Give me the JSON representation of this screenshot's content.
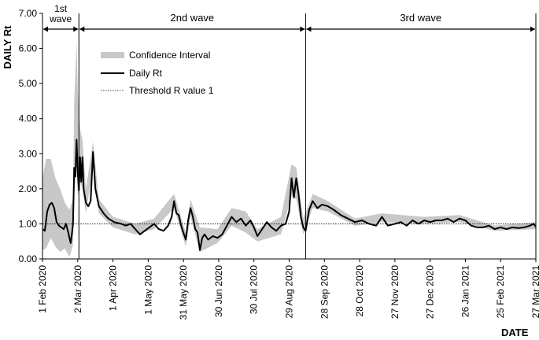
{
  "chart_data": {
    "type": "line",
    "ylabel": "DAILY Rt",
    "xlabel": "DATE",
    "ylim": [
      0,
      7
    ],
    "y_ticks": [
      "0.00",
      "1.00",
      "2.00",
      "3.00",
      "4.00",
      "5.00",
      "6.00",
      "7.00"
    ],
    "x_range": [
      "2020-02-01",
      "2021-03-27"
    ],
    "x_ticks": [
      {
        "date": "2020-02-01",
        "label": "1 Feb 2020"
      },
      {
        "date": "2020-03-02",
        "label": "2 Mar 2020"
      },
      {
        "date": "2020-04-01",
        "label": "1 Apr 2020"
      },
      {
        "date": "2020-05-01",
        "label": "1 May 2020"
      },
      {
        "date": "2020-05-31",
        "label": "31 May 2020"
      },
      {
        "date": "2020-06-30",
        "label": "30 Jun 2020"
      },
      {
        "date": "2020-07-30",
        "label": "30 Jul 2020"
      },
      {
        "date": "2020-08-29",
        "label": "29 Aug 2020"
      },
      {
        "date": "2020-09-28",
        "label": "28 Sep 2020"
      },
      {
        "date": "2020-10-28",
        "label": "28 Oct 2020"
      },
      {
        "date": "2020-11-27",
        "label": "27 Nov 2020"
      },
      {
        "date": "2020-12-27",
        "label": "27 Dec 2020"
      },
      {
        "date": "2021-01-26",
        "label": "26 Jan 2021"
      },
      {
        "date": "2021-02-25",
        "label": "25 Feb 2021"
      },
      {
        "date": "2021-03-27",
        "label": "27 Mar 2021"
      }
    ],
    "threshold": 1.0,
    "legend": {
      "position": "top-left",
      "entries": [
        {
          "name": "Confidence Interval",
          "style": "band",
          "color": "#c8c8c8"
        },
        {
          "name": "Daily Rt",
          "style": "line",
          "color": "#000000"
        },
        {
          "name": "Threshold R value 1",
          "style": "dotted",
          "color": "#000000"
        }
      ]
    },
    "waves": [
      {
        "label": "1st\nwave",
        "start": "2020-02-01",
        "end": "2020-03-03"
      },
      {
        "label": "2nd wave",
        "start": "2020-03-03",
        "end": "2020-09-12"
      },
      {
        "label": "3rd wave",
        "start": "2020-09-12",
        "end": "2021-03-27"
      }
    ],
    "dividers": [
      "2020-03-03",
      "2020-09-12"
    ],
    "series": [
      {
        "name": "Daily Rt",
        "color": "#000000",
        "points": [
          [
            "2020-02-01",
            0.85
          ],
          [
            "2020-02-03",
            0.8
          ],
          [
            "2020-02-05",
            1.35
          ],
          [
            "2020-02-07",
            1.55
          ],
          [
            "2020-02-09",
            1.6
          ],
          [
            "2020-02-11",
            1.45
          ],
          [
            "2020-02-13",
            1.05
          ],
          [
            "2020-02-15",
            0.95
          ],
          [
            "2020-02-17",
            0.9
          ],
          [
            "2020-02-19",
            0.85
          ],
          [
            "2020-02-21",
            1.0
          ],
          [
            "2020-02-23",
            0.75
          ],
          [
            "2020-02-25",
            0.45
          ],
          [
            "2020-02-26",
            0.7
          ],
          [
            "2020-02-27",
            1.0
          ],
          [
            "2020-02-28",
            2.6
          ],
          [
            "2020-02-29",
            2.35
          ],
          [
            "2020-03-01",
            3.4
          ],
          [
            "2020-03-02",
            2.5
          ],
          [
            "2020-03-03",
            1.95
          ],
          [
            "2020-03-04",
            2.9
          ],
          [
            "2020-03-05",
            2.2
          ],
          [
            "2020-03-06",
            2.9
          ],
          [
            "2020-03-07",
            2.0
          ],
          [
            "2020-03-09",
            1.6
          ],
          [
            "2020-03-11",
            1.5
          ],
          [
            "2020-03-13",
            1.65
          ],
          [
            "2020-03-15",
            3.05
          ],
          [
            "2020-03-17",
            2.0
          ],
          [
            "2020-03-20",
            1.5
          ],
          [
            "2020-03-24",
            1.3
          ],
          [
            "2020-03-28",
            1.15
          ],
          [
            "2020-04-02",
            1.05
          ],
          [
            "2020-04-08",
            1.0
          ],
          [
            "2020-04-12",
            0.95
          ],
          [
            "2020-04-16",
            1.0
          ],
          [
            "2020-04-20",
            0.85
          ],
          [
            "2020-04-24",
            0.7
          ],
          [
            "2020-04-28",
            0.8
          ],
          [
            "2020-05-02",
            0.9
          ],
          [
            "2020-05-06",
            1.0
          ],
          [
            "2020-05-10",
            0.85
          ],
          [
            "2020-05-14",
            0.8
          ],
          [
            "2020-05-18",
            0.95
          ],
          [
            "2020-05-21",
            1.2
          ],
          [
            "2020-05-23",
            1.65
          ],
          [
            "2020-05-25",
            1.3
          ],
          [
            "2020-05-27",
            1.25
          ],
          [
            "2020-05-29",
            0.95
          ],
          [
            "2020-05-31",
            0.75
          ],
          [
            "2020-06-02",
            0.55
          ],
          [
            "2020-06-04",
            1.1
          ],
          [
            "2020-06-06",
            1.45
          ],
          [
            "2020-06-08",
            1.2
          ],
          [
            "2020-06-10",
            0.85
          ],
          [
            "2020-06-12",
            0.75
          ],
          [
            "2020-06-14",
            0.25
          ],
          [
            "2020-06-16",
            0.6
          ],
          [
            "2020-06-18",
            0.7
          ],
          [
            "2020-06-21",
            0.55
          ],
          [
            "2020-06-25",
            0.65
          ],
          [
            "2020-06-29",
            0.6
          ],
          [
            "2020-07-03",
            0.7
          ],
          [
            "2020-07-07",
            0.95
          ],
          [
            "2020-07-11",
            1.2
          ],
          [
            "2020-07-15",
            1.05
          ],
          [
            "2020-07-19",
            1.15
          ],
          [
            "2020-07-23",
            0.95
          ],
          [
            "2020-07-27",
            1.1
          ],
          [
            "2020-07-30",
            0.9
          ],
          [
            "2020-08-02",
            0.65
          ],
          [
            "2020-08-06",
            0.85
          ],
          [
            "2020-08-10",
            1.05
          ],
          [
            "2020-08-14",
            0.9
          ],
          [
            "2020-08-18",
            0.8
          ],
          [
            "2020-08-22",
            0.95
          ],
          [
            "2020-08-26",
            1.0
          ],
          [
            "2020-08-29",
            1.35
          ],
          [
            "2020-08-31",
            2.3
          ],
          [
            "2020-09-02",
            1.75
          ],
          [
            "2020-09-04",
            2.3
          ],
          [
            "2020-09-06",
            1.85
          ],
          [
            "2020-09-08",
            1.2
          ],
          [
            "2020-09-10",
            0.9
          ],
          [
            "2020-09-12",
            0.8
          ],
          [
            "2020-09-15",
            1.4
          ],
          [
            "2020-09-18",
            1.65
          ],
          [
            "2020-09-22",
            1.45
          ],
          [
            "2020-09-26",
            1.55
          ],
          [
            "2020-10-01",
            1.5
          ],
          [
            "2020-10-06",
            1.4
          ],
          [
            "2020-10-12",
            1.25
          ],
          [
            "2020-10-18",
            1.15
          ],
          [
            "2020-10-24",
            1.05
          ],
          [
            "2020-10-30",
            1.1
          ],
          [
            "2020-11-05",
            1.0
          ],
          [
            "2020-11-11",
            0.95
          ],
          [
            "2020-11-16",
            1.2
          ],
          [
            "2020-11-21",
            0.95
          ],
          [
            "2020-11-27",
            1.0
          ],
          [
            "2020-12-02",
            1.05
          ],
          [
            "2020-12-07",
            0.95
          ],
          [
            "2020-12-12",
            1.1
          ],
          [
            "2020-12-17",
            1.0
          ],
          [
            "2020-12-22",
            1.1
          ],
          [
            "2020-12-27",
            1.05
          ],
          [
            "2021-01-01",
            1.1
          ],
          [
            "2021-01-06",
            1.1
          ],
          [
            "2021-01-11",
            1.15
          ],
          [
            "2021-01-16",
            1.05
          ],
          [
            "2021-01-21",
            1.15
          ],
          [
            "2021-01-26",
            1.1
          ],
          [
            "2021-01-31",
            0.95
          ],
          [
            "2021-02-05",
            0.9
          ],
          [
            "2021-02-10",
            0.9
          ],
          [
            "2021-02-15",
            0.95
          ],
          [
            "2021-02-20",
            0.85
          ],
          [
            "2021-02-25",
            0.9
          ],
          [
            "2021-03-02",
            0.85
          ],
          [
            "2021-03-07",
            0.9
          ],
          [
            "2021-03-12",
            0.88
          ],
          [
            "2021-03-17",
            0.9
          ],
          [
            "2021-03-22",
            0.95
          ],
          [
            "2021-03-25",
            1.0
          ],
          [
            "2021-03-27",
            0.92
          ]
        ]
      },
      {
        "name": "Confidence Interval",
        "color": "#c8c8c8",
        "points": [
          [
            "2020-02-01",
            0.25,
            2.3
          ],
          [
            "2020-02-04",
            0.3,
            2.85
          ],
          [
            "2020-02-08",
            0.6,
            2.85
          ],
          [
            "2020-02-12",
            0.35,
            2.3
          ],
          [
            "2020-02-16",
            0.2,
            2.0
          ],
          [
            "2020-02-20",
            0.3,
            1.6
          ],
          [
            "2020-02-24",
            0.05,
            1.4
          ],
          [
            "2020-02-27",
            0.4,
            1.7
          ],
          [
            "2020-02-28",
            1.8,
            4.5
          ],
          [
            "2020-03-01",
            2.6,
            6.2
          ],
          [
            "2020-03-02",
            1.8,
            4.8
          ],
          [
            "2020-03-04",
            2.2,
            3.7
          ],
          [
            "2020-03-06",
            2.0,
            3.4
          ],
          [
            "2020-03-09",
            1.3,
            2.0
          ],
          [
            "2020-03-15",
            2.6,
            3.35
          ],
          [
            "2020-03-20",
            1.3,
            1.7
          ],
          [
            "2020-04-01",
            0.9,
            1.2
          ],
          [
            "2020-04-20",
            0.7,
            1.0
          ],
          [
            "2020-05-06",
            0.85,
            1.15
          ],
          [
            "2020-05-23",
            1.45,
            1.85
          ],
          [
            "2020-06-02",
            0.35,
            0.75
          ],
          [
            "2020-06-06",
            1.2,
            1.7
          ],
          [
            "2020-06-14",
            0.2,
            0.9
          ],
          [
            "2020-06-29",
            0.45,
            0.85
          ],
          [
            "2020-07-11",
            0.95,
            1.45
          ],
          [
            "2020-07-23",
            0.75,
            1.35
          ],
          [
            "2020-08-02",
            0.5,
            0.85
          ],
          [
            "2020-08-22",
            0.7,
            1.2
          ],
          [
            "2020-08-31",
            1.8,
            2.7
          ],
          [
            "2020-09-04",
            1.7,
            2.6
          ],
          [
            "2020-09-10",
            0.7,
            1.15
          ],
          [
            "2020-09-18",
            1.45,
            1.85
          ],
          [
            "2020-10-01",
            1.35,
            1.65
          ],
          [
            "2020-10-24",
            0.95,
            1.15
          ],
          [
            "2020-11-16",
            1.05,
            1.3
          ],
          [
            "2020-12-22",
            1.0,
            1.2
          ],
          [
            "2021-01-21",
            1.05,
            1.25
          ],
          [
            "2021-02-20",
            0.8,
            0.95
          ],
          [
            "2021-03-27",
            0.85,
            1.05
          ]
        ]
      }
    ]
  }
}
